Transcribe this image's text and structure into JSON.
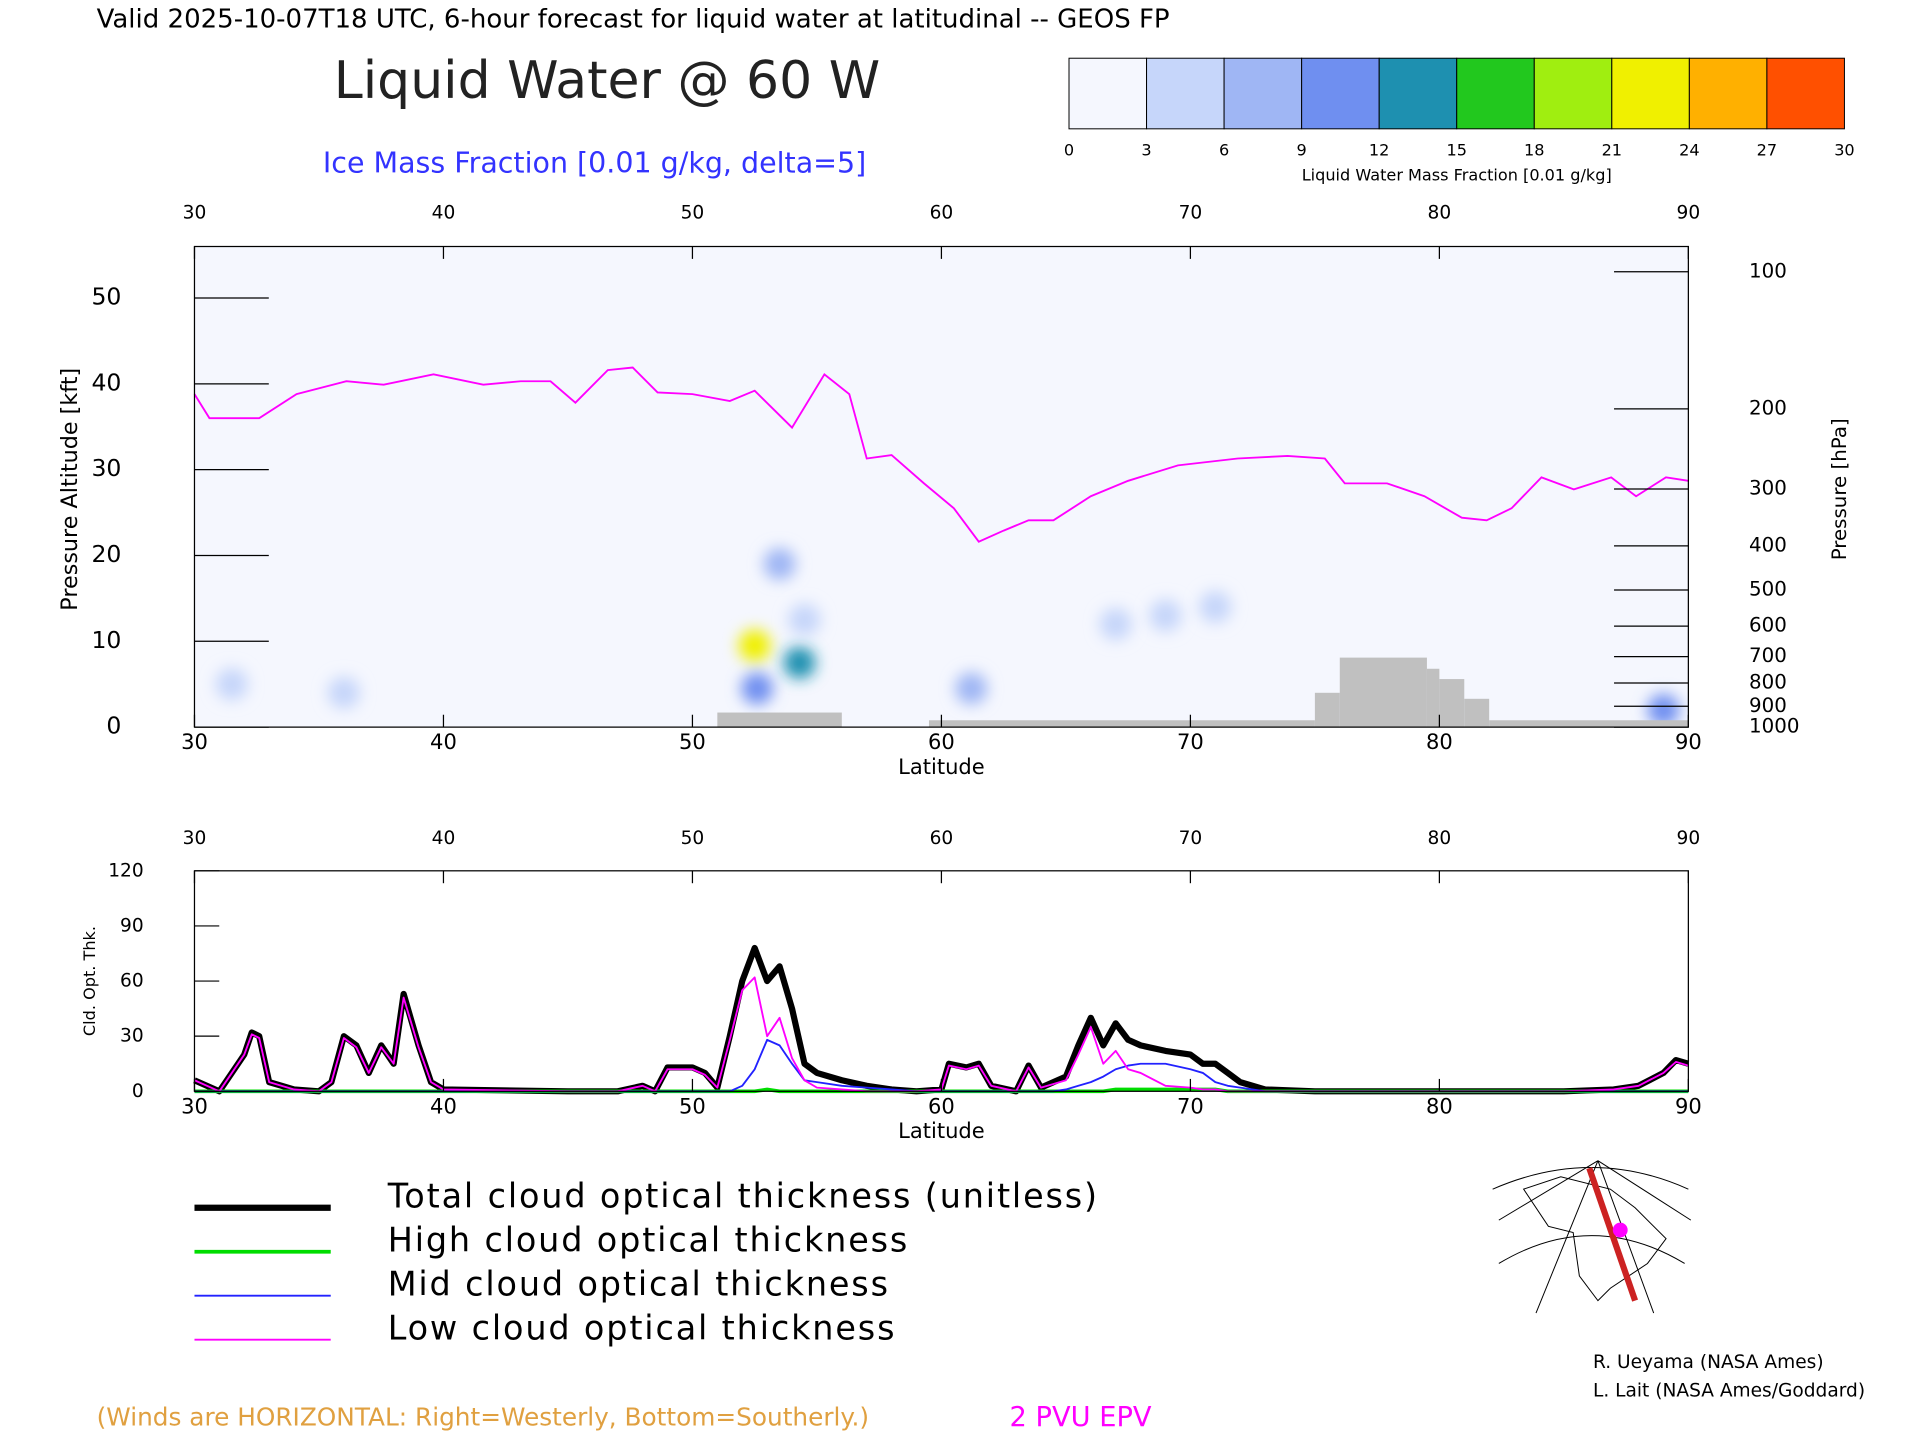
{
  "header": {
    "title": "Valid 2025-10-07T18 UTC, 6-hour forecast for liquid water at latitudinal -- GEOS FP",
    "note": "(Winds are HORIZONTAL: Right=Westerly, Bottom=Southerly.)",
    "credits": [
      "R. Ueyama (NASA Ames)",
      "L. Lait (NASA Ames/Goddard)"
    ]
  },
  "chart_data": [
    {
      "type": "cross-section",
      "title": "Liquid Water @ 60 W",
      "subtitle": "Ice Mass Fraction [0.01 g/kg, delta=5]",
      "xlabel": "Latitude",
      "ylabel": "Pressure Altitude [kft]",
      "y2label": "Pressure [hPa]",
      "xlim": [
        30,
        90
      ],
      "xticks": [
        30,
        40,
        50,
        60,
        70,
        80,
        90
      ],
      "ylim": [
        0,
        56
      ],
      "yticks": [
        0,
        10,
        20,
        30,
        40,
        50
      ],
      "y2lim": [
        1000,
        88
      ],
      "y2scale": "log",
      "y2ticks": [
        100,
        200,
        300,
        400,
        500,
        600,
        700,
        800,
        900,
        1000
      ],
      "colorbar": {
        "label": "Liquid Water Mass Fraction [0.01 g/kg]",
        "ticks": [
          0,
          3,
          6,
          9,
          12,
          15,
          18,
          21,
          24,
          27,
          30
        ],
        "colors": [
          "#f5f7fe",
          "#c6d6fa",
          "#9fb6f4",
          "#6f8ff0",
          "#1e90b0",
          "#22c81e",
          "#a0ee10",
          "#f0f000",
          "#ffb000",
          "#ff5000"
        ]
      },
      "series": [
        {
          "name": "2 PVU EPV",
          "color": "#ff00ff",
          "x": [
            30,
            30.6,
            32.6,
            34.1,
            36.1,
            37.6,
            39.6,
            41.6,
            43.1,
            44.3,
            45.3,
            46.6,
            47.6,
            48.6,
            50,
            51.5,
            52.5,
            54,
            55.3,
            56.3,
            57,
            58,
            59.3,
            60.5,
            61.5,
            62.5,
            63.5,
            64.5,
            66,
            67.5,
            69.5,
            71.9,
            73.9,
            75.4,
            76.2,
            77.9,
            79.4,
            80.9,
            81.9,
            82.9,
            84.1,
            85.4,
            86.9,
            87.9,
            89.1,
            90
          ],
          "values": [
            38.8,
            36,
            36,
            38.8,
            40.3,
            39.9,
            41.1,
            39.9,
            40.3,
            40.3,
            37.8,
            41.6,
            41.9,
            39,
            38.8,
            38,
            39.2,
            34.9,
            41.1,
            38.8,
            31.3,
            31.7,
            28.4,
            25.5,
            21.6,
            22.9,
            24.1,
            24.1,
            26.9,
            28.7,
            30.5,
            31.3,
            31.6,
            31.3,
            28.4,
            28.4,
            26.9,
            24.4,
            24.1,
            25.5,
            29.1,
            27.7,
            29.1,
            26.9,
            29.1,
            28.7
          ]
        }
      ],
      "terrain": {
        "color": "#c0c0c0",
        "x0": [
          51,
          59.5,
          75,
          76,
          79.5,
          80,
          81,
          82
        ],
        "x1": [
          56,
          75,
          76,
          79.5,
          80,
          81,
          82,
          90
        ],
        "values": [
          1.7,
          0.8,
          4,
          8.1,
          6.8,
          5.6,
          3.3,
          0.8
        ]
      },
      "cells": {
        "x": [
          52.5,
          52.6,
          54.3,
          53.5,
          54.5,
          61.2,
          67,
          69,
          71,
          31.5,
          36,
          89
        ],
        "y": [
          9.5,
          4.5,
          7.5,
          19,
          12.5,
          4.5,
          12,
          13,
          14,
          5,
          4,
          2
        ],
        "values": [
          22,
          10,
          14,
          8,
          5,
          6,
          4,
          4,
          3,
          4,
          3,
          10
        ]
      }
    },
    {
      "type": "line",
      "xlabel": "Latitude",
      "ylabel": "Cld. Opt. Thk.",
      "xlim": [
        30,
        90
      ],
      "xticks": [
        30,
        40,
        50,
        60,
        70,
        80,
        90
      ],
      "ylim": [
        0,
        120
      ],
      "yticks": [
        0,
        30,
        60,
        90,
        120
      ],
      "x": [
        30,
        31,
        31.5,
        32,
        32.3,
        32.6,
        33,
        34,
        35,
        35.5,
        36,
        36.5,
        37,
        37.5,
        38,
        38.4,
        39,
        39.5,
        40,
        45,
        47,
        48,
        48.5,
        49,
        50,
        50.5,
        51,
        51.5,
        52,
        52.5,
        53,
        53.5,
        54,
        54.5,
        55,
        56,
        57,
        58,
        59,
        60,
        60.3,
        61,
        61.5,
        62,
        63,
        63.5,
        64,
        64.5,
        65,
        65.5,
        66,
        66.5,
        67,
        67.5,
        68,
        69,
        70,
        70.5,
        71,
        71.5,
        72,
        73,
        75,
        80,
        85,
        87,
        88,
        89,
        89.5,
        90
      ],
      "series": [
        {
          "name": "Total cloud optical thickness (unitless)",
          "color": "#000000",
          "width": 5,
          "values": [
            6,
            0,
            10,
            20,
            32,
            30,
            5,
            1,
            0,
            5,
            30,
            25,
            10,
            25,
            15,
            53,
            25,
            5,
            1,
            0,
            0,
            3,
            0,
            13,
            13,
            10,
            2,
            30,
            60,
            78,
            60,
            68,
            45,
            15,
            10,
            6,
            3,
            1,
            0,
            1,
            15,
            13,
            15,
            3,
            0,
            14,
            2,
            5,
            8,
            25,
            40,
            25,
            37,
            28,
            25,
            22,
            20,
            15,
            15,
            10,
            5,
            1,
            0,
            0,
            0,
            1,
            3,
            10,
            17,
            15
          ]
        },
        {
          "name": "High cloud optical thickness",
          "color": "#00dd00",
          "width": 3,
          "values": [
            0,
            0,
            0,
            0,
            0,
            0,
            0,
            0,
            0,
            0,
            0,
            0,
            0,
            0,
            0,
            0,
            0,
            0,
            0,
            0,
            0,
            0,
            0,
            0,
            0,
            0,
            0,
            0,
            0,
            0,
            1,
            0,
            0,
            0,
            0,
            0,
            0,
            0,
            0,
            0,
            0,
            0,
            0,
            0,
            0,
            0,
            0,
            0,
            0,
            0,
            0,
            0,
            1,
            1,
            1,
            1,
            1,
            1,
            1,
            0,
            0,
            0,
            0,
            0,
            0,
            0,
            0,
            0,
            0,
            0
          ]
        },
        {
          "name": "Mid cloud optical thickness",
          "color": "#2222ff",
          "width": 1.5,
          "values": [
            0,
            0,
            0,
            0,
            0,
            0,
            0,
            0,
            0,
            0,
            0,
            0,
            0,
            0,
            0,
            0,
            0,
            0,
            0,
            0,
            0,
            0,
            0,
            0,
            0,
            0,
            0,
            0,
            3,
            12,
            28,
            25,
            15,
            6,
            5,
            3,
            2,
            1,
            0,
            0,
            0,
            0,
            0,
            0,
            0,
            0,
            0,
            0,
            1,
            3,
            5,
            8,
            12,
            14,
            15,
            15,
            12,
            10,
            5,
            3,
            2,
            0,
            0,
            0,
            0,
            0,
            0,
            0,
            0,
            0
          ]
        },
        {
          "name": "Low cloud optical thickness",
          "color": "#ff00ff",
          "width": 1.5,
          "values": [
            6,
            0,
            10,
            20,
            31,
            29,
            5,
            1,
            0,
            5,
            29,
            24,
            10,
            24,
            15,
            51,
            24,
            5,
            1,
            0,
            0,
            3,
            0,
            12,
            12,
            9,
            2,
            28,
            55,
            62,
            30,
            40,
            18,
            6,
            2,
            1,
            0,
            0,
            0,
            1,
            14,
            12,
            14,
            3,
            0,
            13,
            2,
            4,
            6,
            20,
            35,
            15,
            22,
            12,
            10,
            3,
            2,
            1,
            1,
            0,
            0,
            0,
            0,
            0,
            0,
            1,
            3,
            10,
            16,
            14
          ]
        }
      ]
    }
  ]
}
